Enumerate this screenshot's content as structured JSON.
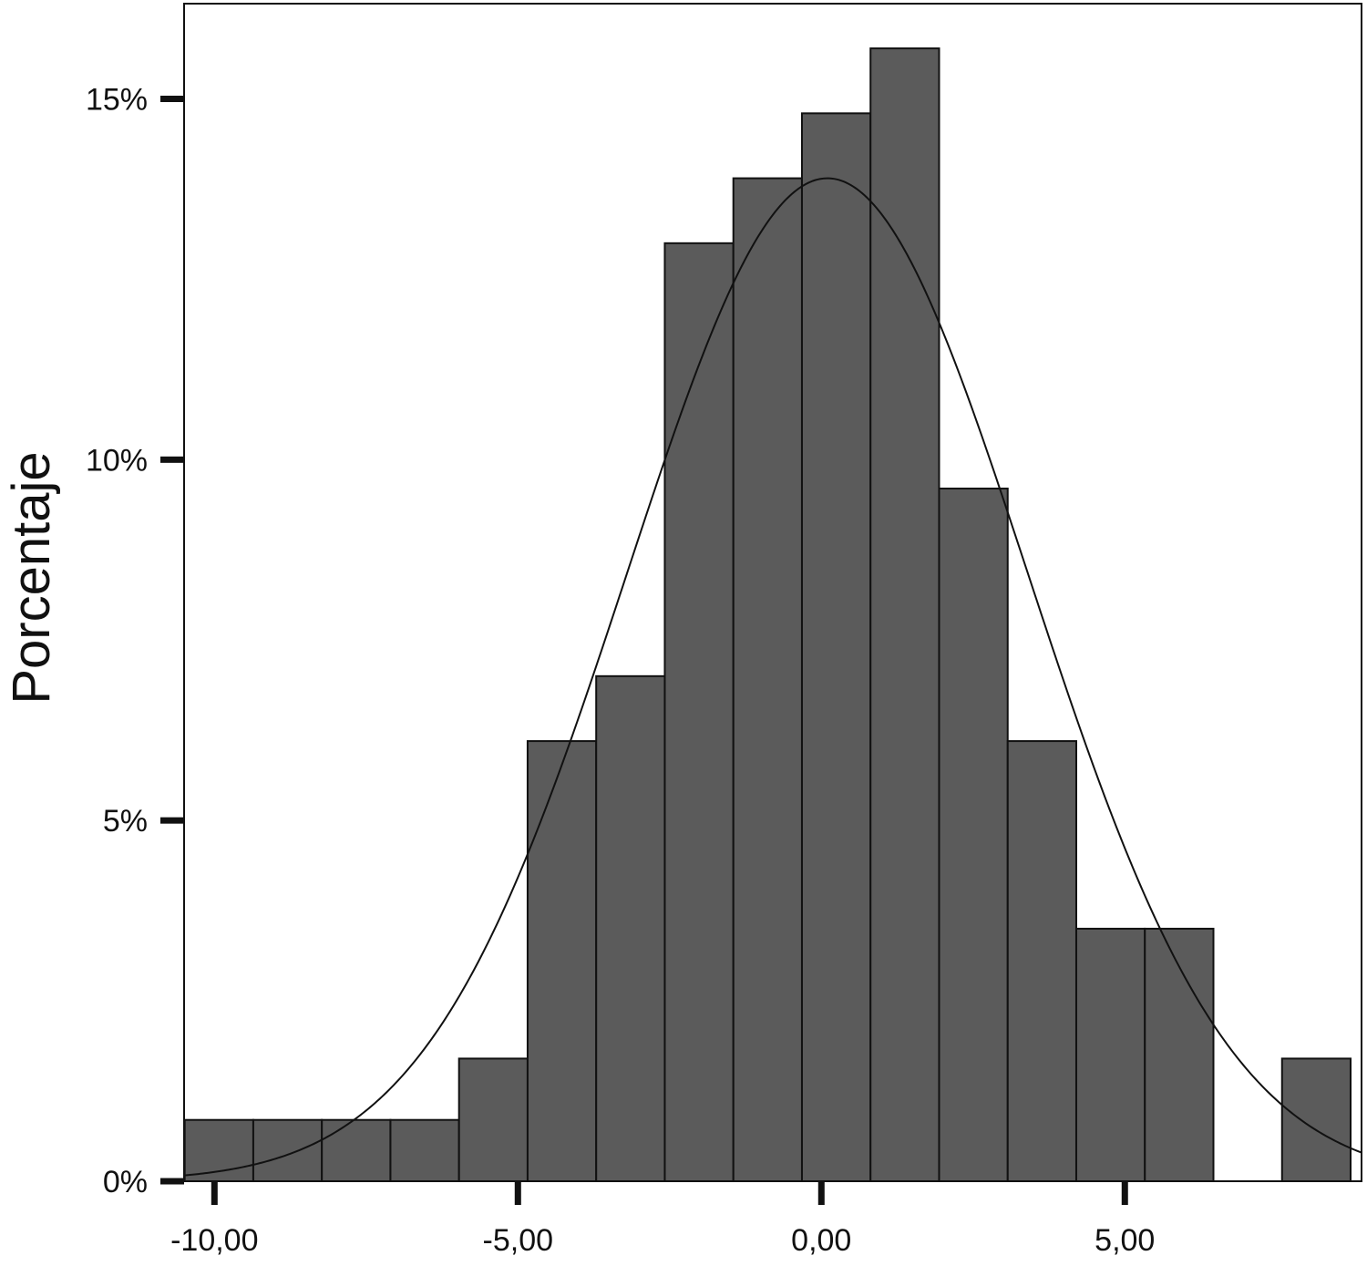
{
  "chart_data": {
    "type": "bar",
    "subtype": "histogram",
    "ylabel": "Porcentaje",
    "xlabel": "",
    "xlim": [
      -10.5,
      8.9
    ],
    "ylim": [
      0,
      16
    ],
    "x_ticks": [
      {
        "value": -10,
        "label": "-10,00"
      },
      {
        "value": -5,
        "label": "-5,00"
      },
      {
        "value": 0,
        "label": "0,00"
      },
      {
        "value": 5,
        "label": "5,00"
      }
    ],
    "y_ticks": [
      {
        "value": 0,
        "label": "0%"
      },
      {
        "value": 5,
        "label": "5%"
      },
      {
        "value": 10,
        "label": "10%"
      },
      {
        "value": 15,
        "label": "15%"
      }
    ],
    "bins": [
      {
        "start": -10.49,
        "end": -9.36,
        "value": 0.85
      },
      {
        "start": -9.36,
        "end": -8.23,
        "value": 0.85
      },
      {
        "start": -8.23,
        "end": -7.1,
        "value": 0.85
      },
      {
        "start": -7.1,
        "end": -5.97,
        "value": 0.85
      },
      {
        "start": -5.97,
        "end": -4.84,
        "value": 1.7
      },
      {
        "start": -4.84,
        "end": -3.71,
        "value": 6.1
      },
      {
        "start": -3.71,
        "end": -2.58,
        "value": 7.0
      },
      {
        "start": -2.58,
        "end": -1.45,
        "value": 13.0
      },
      {
        "start": -1.45,
        "end": -0.32,
        "value": 13.9
      },
      {
        "start": -0.32,
        "end": 0.81,
        "value": 14.8
      },
      {
        "start": 0.81,
        "end": 1.94,
        "value": 15.7
      },
      {
        "start": 1.94,
        "end": 3.07,
        "value": 9.6
      },
      {
        "start": 3.07,
        "end": 4.2,
        "value": 6.1
      },
      {
        "start": 4.2,
        "end": 5.33,
        "value": 3.5
      },
      {
        "start": 5.33,
        "end": 6.46,
        "value": 3.5
      },
      {
        "start": 6.46,
        "end": 7.59,
        "value": 0
      },
      {
        "start": 7.59,
        "end": 8.72,
        "value": 1.7
      }
    ],
    "normal_curve": {
      "mean": 0.1,
      "sd": 3.3,
      "peak": 13.9
    },
    "colors": {
      "bar_fill": "#5b5b5b",
      "bar_stroke": "#111111",
      "curve": "#111111",
      "frame": "#111111"
    },
    "grid": false,
    "legend": "none"
  }
}
